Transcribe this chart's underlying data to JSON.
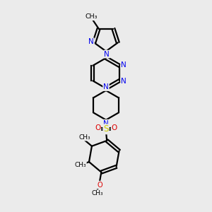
{
  "background_color": "#ebebeb",
  "bond_color": "#000000",
  "n_color": "#0000ee",
  "o_color": "#dd0000",
  "s_color": "#cccc00",
  "line_width": 1.6,
  "figsize": [
    3.0,
    3.0
  ],
  "dpi": 100,
  "xlim": [
    2.5,
    7.5
  ],
  "ylim": [
    0.5,
    13.5
  ]
}
